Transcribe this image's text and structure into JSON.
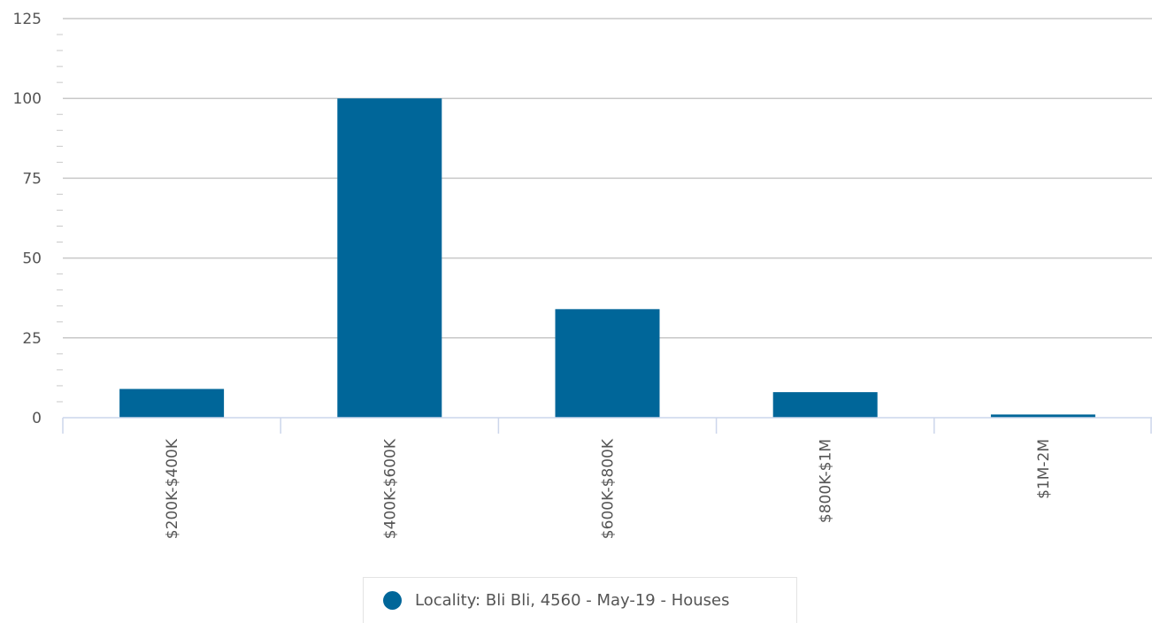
{
  "colors": {
    "bar": "#006699",
    "grid": "#c8c8c8",
    "axis": "#ccd6eb",
    "text": "#555555"
  },
  "legend": {
    "label": "Locality: Bli Bli, 4560 - May-19 - Houses",
    "placement": "bottom-center"
  },
  "chart_data": {
    "type": "bar",
    "categories": [
      "$200K-$400K",
      "$400K-$600K",
      "$600K-$800K",
      "$800K-$1M",
      "$1M-2M"
    ],
    "series": [
      {
        "name": "Locality: Bli Bli, 4560 - May-19 - Houses",
        "values": [
          9,
          100,
          34,
          8,
          1
        ]
      }
    ],
    "title": "",
    "xlabel": "",
    "ylabel": "",
    "ylim": [
      0,
      125
    ],
    "yticks": [
      0,
      25,
      50,
      75,
      100,
      125
    ],
    "grid": true,
    "legend": "bottom-center"
  }
}
